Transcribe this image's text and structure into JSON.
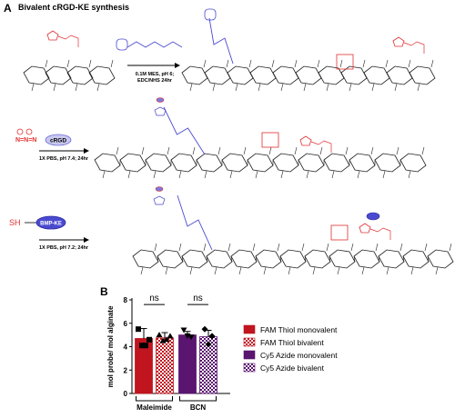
{
  "panel_a": {
    "label": "A",
    "title": "Bivalent cRGD-KE synthesis",
    "steps": [
      {
        "conditions": [
          "0.1M MES, pH 6;",
          "EDC/NHS 24hr"
        ]
      },
      {
        "reagent": "cRGD",
        "conditions": [
          "1X PBS, pH 7.4; 24hr"
        ]
      },
      {
        "reagent": "BMP-KE",
        "thiol": "SH",
        "conditions": [
          "1X PBS, pH 7.2; 24hr"
        ]
      }
    ]
  },
  "panel_b": {
    "label": "B"
  },
  "colors": {
    "chem_red": "#e03030",
    "linker_blue": "#4a4ad0",
    "fam_red": "#c0141e",
    "cy5_purple": "#5a1570",
    "reagent_purple": "#6a6ad8",
    "marker": "#000000"
  },
  "chart_data": {
    "type": "bar",
    "ylabel": "mol probe/ mol alginate",
    "ylim": [
      0,
      8
    ],
    "yticks": [
      0,
      2,
      4,
      6,
      8
    ],
    "groups": [
      "Maleimide",
      "BCN"
    ],
    "series": [
      {
        "name": "FAM Thiol monovalent",
        "group": "Maleimide",
        "mean": 4.7,
        "error": 0.85,
        "points": [
          5.5,
          4.1,
          4.1,
          4.6
        ],
        "pattern": "solid",
        "color": "#c0141e"
      },
      {
        "name": "FAM Thiol bivalent",
        "group": "Maleimide",
        "mean": 4.75,
        "error": 0.45,
        "points": [
          5.0,
          4.5,
          4.6,
          4.9
        ],
        "pattern": "checker",
        "color": "#c0141e"
      },
      {
        "name": "Cy5 Azide monovalent",
        "group": "BCN",
        "mean": 5.0,
        "error": 0.3,
        "points": [
          5.4,
          4.9,
          4.8
        ],
        "pattern": "solid",
        "color": "#5a1570"
      },
      {
        "name": "Cy5 Azide bivalent",
        "group": "BCN",
        "mean": 4.85,
        "error": 0.55,
        "points": [
          5.5,
          4.2,
          4.9
        ],
        "pattern": "checker",
        "color": "#5a1570"
      }
    ],
    "annotations": [
      {
        "text": "ns",
        "between": [
          "FAM Thiol monovalent",
          "FAM Thiol bivalent"
        ]
      },
      {
        "text": "ns",
        "between": [
          "Cy5 Azide monovalent",
          "Cy5 Azide bivalent"
        ]
      }
    ],
    "legend_position": "right"
  }
}
